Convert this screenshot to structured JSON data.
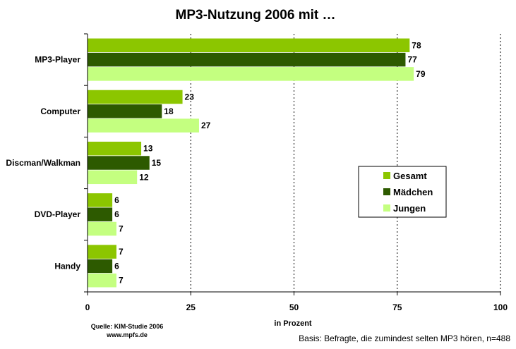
{
  "chart_data": {
    "type": "bar",
    "orientation": "horizontal",
    "title": "MP3-Nutzung 2006 mit …",
    "xlabel": "in Prozent",
    "ylabel": "",
    "xlim": [
      0,
      100
    ],
    "xticks": [
      0,
      25,
      50,
      75,
      100
    ],
    "categories": [
      "MP3-Player",
      "Computer",
      "Discman/Walkman",
      "DVD-Player",
      "Handy"
    ],
    "series": [
      {
        "name": "Gesamt",
        "values": [
          78,
          23,
          13,
          6,
          7
        ],
        "color": "#8cc600"
      },
      {
        "name": "Mädchen",
        "values": [
          77,
          18,
          15,
          6,
          6
        ],
        "color": "#2d5a00"
      },
      {
        "name": "Jungen",
        "values": [
          79,
          27,
          12,
          7,
          7
        ],
        "color": "#c4ff80"
      }
    ],
    "grid": "vertical-dashed",
    "legend_position": "right"
  },
  "footer": {
    "source_line1": "Quelle: KIM-Studie 2006",
    "source_line2": "www.mpfs.de",
    "basis": "Basis: Befragte, die zumindest selten MP3 hören, n=488"
  }
}
